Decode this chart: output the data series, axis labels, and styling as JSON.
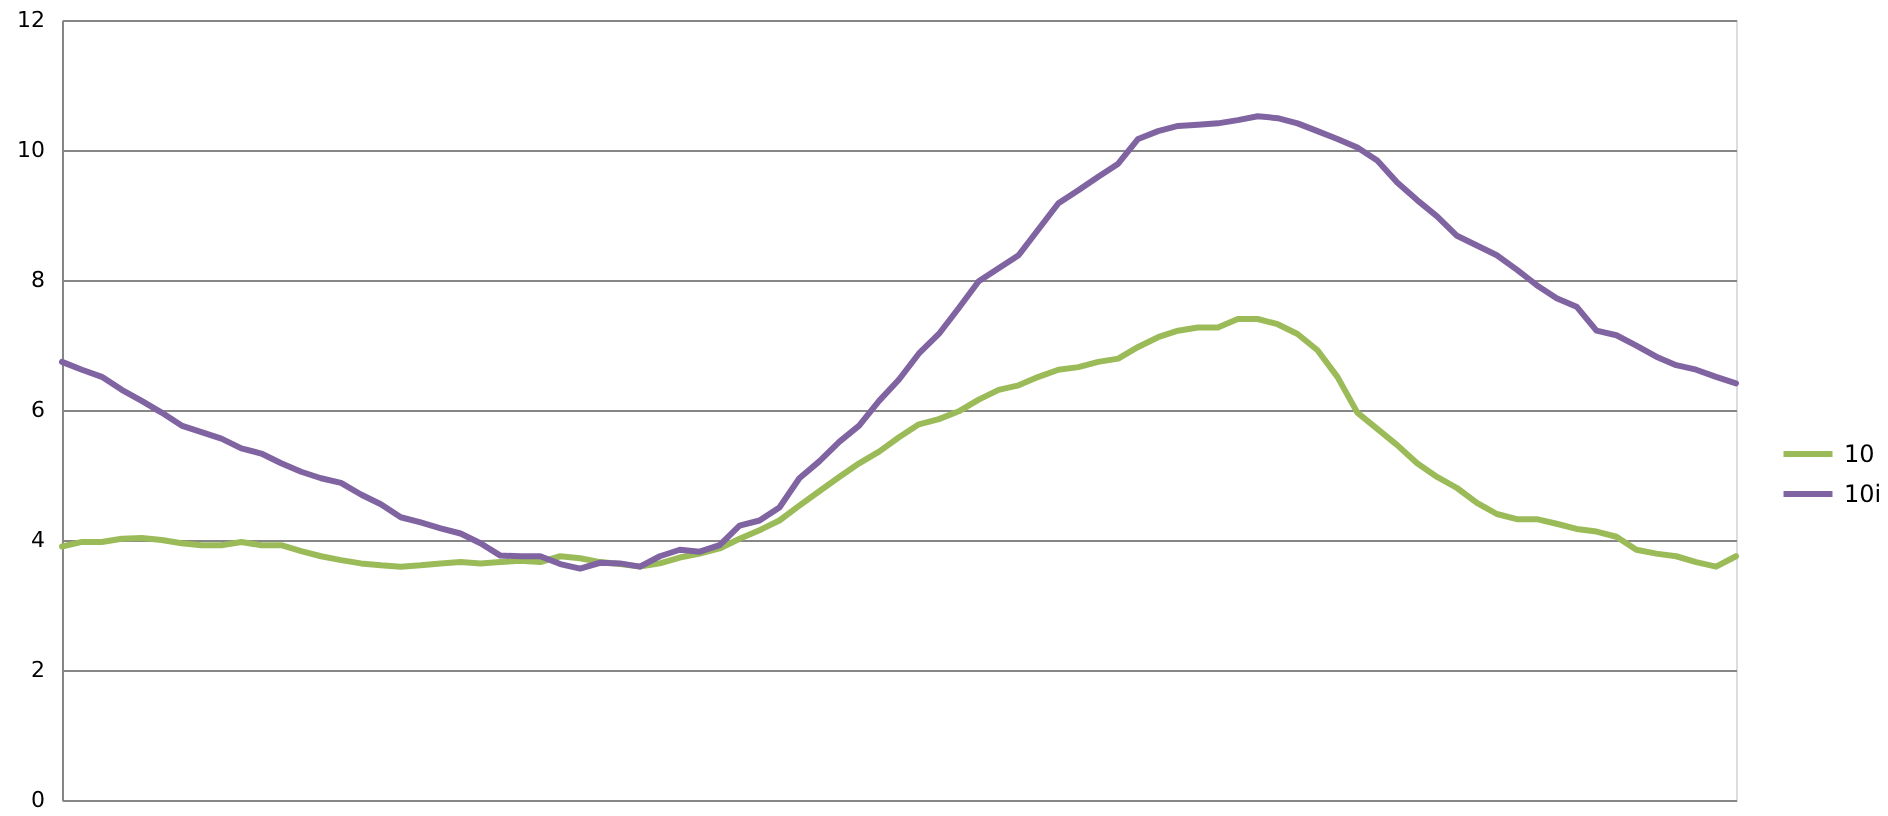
{
  "chart_data": {
    "type": "line",
    "categories": [
      null,
      null,
      null,
      null,
      null,
      null,
      null,
      null,
      null,
      null,
      null,
      null,
      null,
      null,
      null,
      null,
      null,
      null,
      null,
      null,
      null,
      null,
      null,
      null,
      null,
      null,
      null,
      null,
      null,
      null,
      null,
      null,
      null,
      null,
      null,
      null,
      null,
      null,
      null,
      null,
      null,
      null,
      null,
      null,
      null,
      null,
      null,
      null,
      null,
      null,
      null,
      null,
      null,
      null,
      null,
      null,
      null,
      null,
      null,
      null,
      null,
      null,
      null,
      null,
      null,
      null,
      null,
      null,
      null,
      null,
      null,
      null,
      null,
      null,
      null,
      null,
      null,
      null,
      null,
      null,
      null,
      null,
      null,
      null,
      null
    ],
    "series": [
      {
        "name": "10",
        "color": "#9bbb59",
        "values": [
          3.9,
          3.97,
          3.97,
          4.02,
          4.03,
          4.0,
          3.95,
          3.92,
          3.92,
          3.97,
          3.92,
          3.92,
          3.83,
          3.75,
          3.69,
          3.64,
          3.61,
          3.59,
          3.61,
          3.64,
          3.66,
          3.64,
          3.66,
          3.68,
          3.66,
          3.75,
          3.72,
          3.66,
          3.63,
          3.59,
          3.64,
          3.73,
          3.79,
          3.87,
          4.02,
          4.15,
          4.3,
          4.53,
          4.75,
          4.97,
          5.18,
          5.36,
          5.58,
          5.78,
          5.86,
          5.98,
          6.16,
          6.31,
          6.38,
          6.51,
          6.62,
          6.66,
          6.74,
          6.79,
          6.97,
          7.12,
          7.22,
          7.27,
          7.27,
          7.4,
          7.4,
          7.32,
          7.17,
          6.92,
          6.51,
          5.96,
          5.71,
          5.46,
          5.18,
          4.97,
          4.8,
          4.57,
          4.4,
          4.32,
          4.32,
          4.25,
          4.17,
          4.13,
          4.05,
          3.85,
          3.79,
          3.75,
          3.66,
          3.59,
          3.75
        ]
      },
      {
        "name": "10i",
        "color": "#8064a2",
        "values": [
          6.74,
          6.62,
          6.51,
          6.31,
          6.14,
          5.96,
          5.76,
          5.66,
          5.56,
          5.41,
          5.33,
          5.18,
          5.05,
          4.95,
          4.88,
          4.7,
          4.55,
          4.35,
          4.27,
          4.18,
          4.1,
          3.95,
          3.76,
          3.75,
          3.75,
          3.63,
          3.56,
          3.65,
          3.64,
          3.59,
          3.75,
          3.85,
          3.82,
          3.92,
          4.22,
          4.3,
          4.5,
          4.95,
          5.21,
          5.51,
          5.76,
          6.14,
          6.47,
          6.87,
          7.17,
          7.57,
          7.98,
          8.18,
          8.38,
          8.78,
          9.18,
          9.38,
          9.59,
          9.79,
          10.17,
          10.29,
          10.37,
          10.39,
          10.41,
          10.46,
          10.52,
          10.49,
          10.41,
          10.29,
          10.17,
          10.04,
          9.84,
          9.5,
          9.23,
          8.98,
          8.68,
          8.53,
          8.38,
          8.16,
          7.92,
          7.72,
          7.59,
          7.22,
          7.15,
          6.99,
          6.82,
          6.69,
          6.62,
          6.51,
          6.41
        ]
      }
    ],
    "ylim": [
      0,
      12
    ],
    "yticks": [
      0,
      2,
      4,
      6,
      8,
      10,
      12
    ],
    "grid": "y",
    "legend": "right",
    "tick_labels": "y",
    "line_style": "solid"
  }
}
